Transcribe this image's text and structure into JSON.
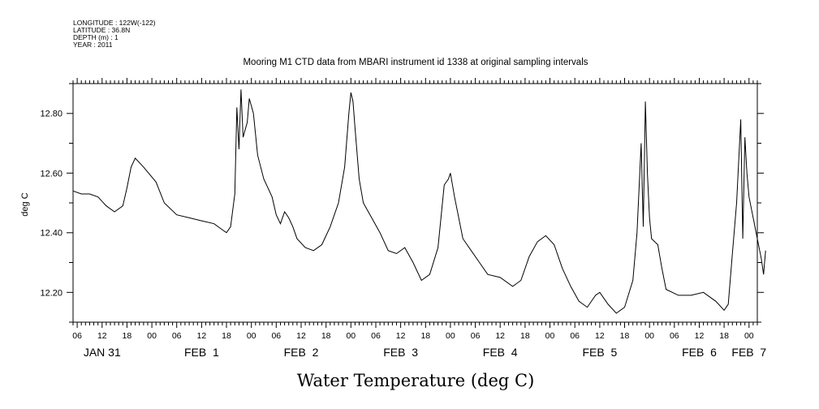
{
  "header": {
    "longitude": "LONGITUDE : 122W(-122)",
    "latitude": "LATITUDE : 36.8N",
    "depth": "DEPTH (m) : 1",
    "year": "YEAR : 2011"
  },
  "footer_title": "Water Temperature (deg C)",
  "chart_data": {
    "type": "line",
    "title": "Mooring M1 CTD data from MBARI instrument id 1338 at original sampling intervals",
    "xlabel": "",
    "ylabel": "deg C",
    "xlim": [
      "2011-01-31T05:00",
      "2011-02-07T02:00"
    ],
    "ylim": [
      12.1,
      12.9
    ],
    "y_ticks": [
      12.2,
      12.4,
      12.6,
      12.8
    ],
    "y_tick_labels": [
      "12.20",
      "12.40",
      "12.60",
      "12.80"
    ],
    "x_hour_ticks": [
      "06",
      "12",
      "18",
      "00",
      "06",
      "12",
      "18",
      "00",
      "06",
      "12",
      "18",
      "00",
      "06",
      "12",
      "18",
      "00",
      "06",
      "12",
      "18",
      "00",
      "06",
      "12",
      "18",
      "00",
      "06",
      "12",
      "18",
      "00"
    ],
    "x_day_labels": [
      "JAN 31",
      "FEB  1",
      "FEB  2",
      "FEB  3",
      "FEB  4",
      "FEB  5",
      "FEB  6",
      "FEB  7"
    ],
    "grid": false,
    "series": [
      {
        "color": "#000000",
        "points": [
          [
            "2011-01-31T05:00",
            12.54
          ],
          [
            "2011-01-31T07:00",
            12.53
          ],
          [
            "2011-01-31T09:00",
            12.53
          ],
          [
            "2011-01-31T11:00",
            12.52
          ],
          [
            "2011-01-31T13:00",
            12.49
          ],
          [
            "2011-01-31T15:00",
            12.47
          ],
          [
            "2011-01-31T17:00",
            12.49
          ],
          [
            "2011-01-31T18:00",
            12.55
          ],
          [
            "2011-01-31T19:00",
            12.62
          ],
          [
            "2011-01-31T20:00",
            12.65
          ],
          [
            "2011-01-31T22:00",
            12.62
          ],
          [
            "2011-02-01T01:00",
            12.57
          ],
          [
            "2011-02-01T03:00",
            12.5
          ],
          [
            "2011-02-01T06:00",
            12.46
          ],
          [
            "2011-02-01T09:00",
            12.45
          ],
          [
            "2011-02-01T12:00",
            12.44
          ],
          [
            "2011-02-01T15:00",
            12.43
          ],
          [
            "2011-02-01T17:00",
            12.41
          ],
          [
            "2011-02-01T18:00",
            12.4
          ],
          [
            "2011-02-01T19:00",
            12.42
          ],
          [
            "2011-02-01T20:00",
            12.53
          ],
          [
            "2011-02-01T20:30",
            12.82
          ],
          [
            "2011-02-01T21:00",
            12.68
          ],
          [
            "2011-02-01T21:30",
            12.88
          ],
          [
            "2011-02-01T22:00",
            12.72
          ],
          [
            "2011-02-01T23:00",
            12.77
          ],
          [
            "2011-02-01T23:30",
            12.85
          ],
          [
            "2011-02-02T00:30",
            12.8
          ],
          [
            "2011-02-02T01:30",
            12.66
          ],
          [
            "2011-02-02T03:00",
            12.58
          ],
          [
            "2011-02-02T04:00",
            12.55
          ],
          [
            "2011-02-02T05:00",
            12.52
          ],
          [
            "2011-02-02T06:00",
            12.46
          ],
          [
            "2011-02-02T07:00",
            12.43
          ],
          [
            "2011-02-02T08:00",
            12.47
          ],
          [
            "2011-02-02T09:00",
            12.45
          ],
          [
            "2011-02-02T10:00",
            12.42
          ],
          [
            "2011-02-02T11:00",
            12.38
          ],
          [
            "2011-02-02T13:00",
            12.35
          ],
          [
            "2011-02-02T15:00",
            12.34
          ],
          [
            "2011-02-02T17:00",
            12.36
          ],
          [
            "2011-02-02T19:00",
            12.42
          ],
          [
            "2011-02-02T21:00",
            12.5
          ],
          [
            "2011-02-02T22:30",
            12.62
          ],
          [
            "2011-02-02T23:30",
            12.8
          ],
          [
            "2011-02-03T00:00",
            12.87
          ],
          [
            "2011-02-03T00:30",
            12.84
          ],
          [
            "2011-02-03T01:00",
            12.75
          ],
          [
            "2011-02-03T02:00",
            12.58
          ],
          [
            "2011-02-03T03:00",
            12.5
          ],
          [
            "2011-02-03T05:00",
            12.45
          ],
          [
            "2011-02-03T07:00",
            12.4
          ],
          [
            "2011-02-03T09:00",
            12.34
          ],
          [
            "2011-02-03T11:00",
            12.33
          ],
          [
            "2011-02-03T13:00",
            12.35
          ],
          [
            "2011-02-03T15:00",
            12.3
          ],
          [
            "2011-02-03T17:00",
            12.24
          ],
          [
            "2011-02-03T19:00",
            12.26
          ],
          [
            "2011-02-03T21:00",
            12.35
          ],
          [
            "2011-02-03T22:30",
            12.56
          ],
          [
            "2011-02-03T23:30",
            12.58
          ],
          [
            "2011-02-04T00:00",
            12.6
          ],
          [
            "2011-02-04T01:00",
            12.52
          ],
          [
            "2011-02-04T03:00",
            12.38
          ],
          [
            "2011-02-04T05:00",
            12.34
          ],
          [
            "2011-02-04T07:00",
            12.3
          ],
          [
            "2011-02-04T09:00",
            12.26
          ],
          [
            "2011-02-04T12:00",
            12.25
          ],
          [
            "2011-02-04T15:00",
            12.22
          ],
          [
            "2011-02-04T17:00",
            12.24
          ],
          [
            "2011-02-04T19:00",
            12.32
          ],
          [
            "2011-02-04T21:00",
            12.37
          ],
          [
            "2011-02-04T23:00",
            12.39
          ],
          [
            "2011-02-05T01:00",
            12.36
          ],
          [
            "2011-02-05T03:00",
            12.28
          ],
          [
            "2011-02-05T05:00",
            12.22
          ],
          [
            "2011-02-05T07:00",
            12.17
          ],
          [
            "2011-02-05T09:00",
            12.15
          ],
          [
            "2011-02-05T11:00",
            12.19
          ],
          [
            "2011-02-05T12:00",
            12.2
          ],
          [
            "2011-02-05T14:00",
            12.16
          ],
          [
            "2011-02-05T16:00",
            12.13
          ],
          [
            "2011-02-05T18:00",
            12.15
          ],
          [
            "2011-02-05T20:00",
            12.24
          ],
          [
            "2011-02-05T21:00",
            12.4
          ],
          [
            "2011-02-05T22:00",
            12.7
          ],
          [
            "2011-02-05T22:30",
            12.42
          ],
          [
            "2011-02-05T23:00",
            12.84
          ],
          [
            "2011-02-05T23:30",
            12.6
          ],
          [
            "2011-02-06T00:00",
            12.45
          ],
          [
            "2011-02-06T00:30",
            12.38
          ],
          [
            "2011-02-06T02:00",
            12.36
          ],
          [
            "2011-02-06T03:00",
            12.28
          ],
          [
            "2011-02-06T04:00",
            12.21
          ],
          [
            "2011-02-06T07:00",
            12.19
          ],
          [
            "2011-02-06T10:00",
            12.19
          ],
          [
            "2011-02-06T13:00",
            12.2
          ],
          [
            "2011-02-06T16:00",
            12.17
          ],
          [
            "2011-02-06T18:00",
            12.14
          ],
          [
            "2011-02-06T19:00",
            12.16
          ],
          [
            "2011-02-06T20:00",
            12.33
          ],
          [
            "2011-02-06T21:00",
            12.5
          ],
          [
            "2011-02-06T22:00",
            12.78
          ],
          [
            "2011-02-06T22:30",
            12.38
          ],
          [
            "2011-02-06T23:00",
            12.72
          ],
          [
            "2011-02-06T23:30",
            12.6
          ],
          [
            "2011-02-07T00:00",
            12.52
          ],
          [
            "2011-02-07T01:00",
            12.45
          ],
          [
            "2011-02-07T02:00",
            12.38
          ],
          [
            "2011-02-07T03:00",
            12.31
          ],
          [
            "2011-02-07T03:30",
            12.26
          ],
          [
            "2011-02-07T04:00",
            12.34
          ]
        ]
      }
    ]
  }
}
